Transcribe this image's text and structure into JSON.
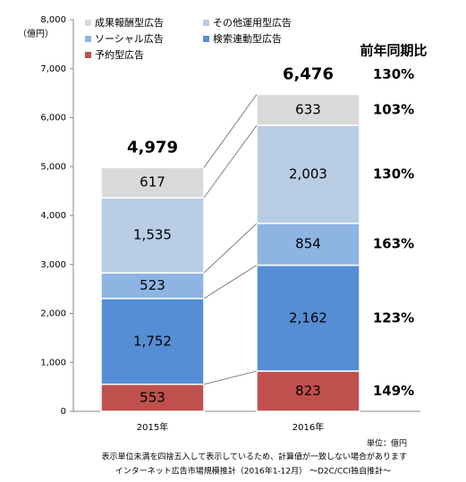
{
  "chart_data": {
    "type": "bar",
    "stacked": true,
    "y_unit": "（億円）",
    "categories": [
      "2015年",
      "2016年"
    ],
    "series": [
      {
        "name": "予約型広告",
        "color": "#c0504d",
        "values": [
          553,
          823
        ],
        "value_labels": [
          "553",
          "823"
        ],
        "yoy": 149,
        "yoy_label": "149%"
      },
      {
        "name": "検索連動型広告",
        "color": "#558ed5",
        "values": [
          1752,
          2162
        ],
        "value_labels": [
          "1,752",
          "2,162"
        ],
        "yoy": 123,
        "yoy_label": "123%"
      },
      {
        "name": "ソーシャル広告",
        "color": "#8eb4e3",
        "values": [
          523,
          854
        ],
        "value_labels": [
          "523",
          "854"
        ],
        "yoy": 163,
        "yoy_label": "163%"
      },
      {
        "name": "その他運用型広告",
        "color": "#b9cde5",
        "values": [
          1535,
          2003
        ],
        "value_labels": [
          "1,535",
          "2,003"
        ],
        "yoy": 130,
        "yoy_label": "130%"
      },
      {
        "name": "成果報酬型広告",
        "color": "#d9d9d9",
        "values": [
          617,
          633
        ],
        "value_labels": [
          "617",
          "633"
        ],
        "yoy": 103,
        "yoy_label": "103%"
      }
    ],
    "totals": [
      4979,
      6476
    ],
    "total_labels": [
      "4,979",
      "6,476"
    ],
    "yoy_title": "前年同期比",
    "total_yoy": 130,
    "total_yoy_label": "130%",
    "ylim": [
      0,
      8000
    ],
    "yticks": [
      0,
      {
        "value": 1000,
        "label": "1,000"
      },
      {
        "value": 2000,
        "label": "2,000"
      },
      {
        "value": 3000,
        "label": "3,000"
      },
      {
        "value": 4000,
        "label": "4,000"
      },
      {
        "value": 5000,
        "label": "5,000"
      },
      {
        "value": 6000,
        "label": "6,000"
      },
      {
        "value": 7000,
        "label": "7,000"
      },
      {
        "value": 8000,
        "label": "8,000"
      }
    ],
    "unit_note": "単位：億円",
    "rounding_note": "表示単位未満を四捨五入して表示しているため、計算値が一致しない場合があります",
    "source": "インターネット広告市場規模推計（2016年1-12月） ～D2C/CCI独自推計～"
  }
}
